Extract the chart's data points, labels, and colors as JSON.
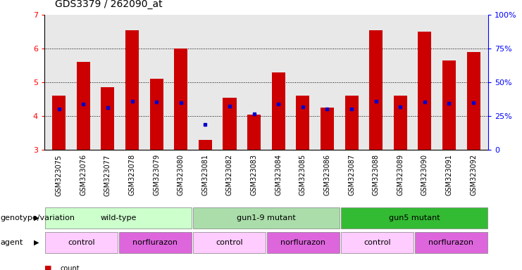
{
  "title": "GDS3379 / 262090_at",
  "samples": [
    "GSM323075",
    "GSM323076",
    "GSM323077",
    "GSM323078",
    "GSM323079",
    "GSM323080",
    "GSM323081",
    "GSM323082",
    "GSM323083",
    "GSM323084",
    "GSM323085",
    "GSM323086",
    "GSM323087",
    "GSM323088",
    "GSM323089",
    "GSM323090",
    "GSM323091",
    "GSM323092"
  ],
  "counts": [
    4.6,
    5.6,
    4.85,
    6.55,
    5.1,
    6.0,
    3.3,
    4.55,
    4.05,
    5.3,
    4.6,
    4.25,
    4.6,
    6.55,
    4.6,
    6.5,
    5.65,
    5.9
  ],
  "percentile_ranks": [
    4.22,
    4.35,
    4.25,
    4.45,
    4.42,
    4.4,
    3.75,
    4.3,
    4.07,
    4.35,
    4.28,
    4.22,
    4.22,
    4.45,
    4.28,
    4.42,
    4.38,
    4.4
  ],
  "bar_color": "#cc0000",
  "dot_color": "#0000cc",
  "ylim": [
    3.0,
    7.0
  ],
  "yticks": [
    3,
    4,
    5,
    6,
    7
  ],
  "right_yticks": [
    0,
    25,
    50,
    75,
    100
  ],
  "genotype_groups": [
    {
      "label": "wild-type",
      "start": 0,
      "end": 5,
      "color": "#ccffcc"
    },
    {
      "label": "gun1-9 mutant",
      "start": 6,
      "end": 11,
      "color": "#aaddaa"
    },
    {
      "label": "gun5 mutant",
      "start": 12,
      "end": 17,
      "color": "#33bb33"
    }
  ],
  "agent_groups": [
    {
      "label": "control",
      "start": 0,
      "end": 2,
      "color": "#ffccff"
    },
    {
      "label": "norflurazon",
      "start": 3,
      "end": 5,
      "color": "#dd66dd"
    },
    {
      "label": "control",
      "start": 6,
      "end": 8,
      "color": "#ffccff"
    },
    {
      "label": "norflurazon",
      "start": 9,
      "end": 11,
      "color": "#dd66dd"
    },
    {
      "label": "control",
      "start": 12,
      "end": 14,
      "color": "#ffccff"
    },
    {
      "label": "norflurazon",
      "start": 15,
      "end": 17,
      "color": "#dd66dd"
    }
  ],
  "bg_color": "#ffffff",
  "plot_bg_color": "#e8e8e8",
  "bar_width": 0.55,
  "tick_fontsize": 7,
  "label_fontsize": 8,
  "title_fontsize": 10
}
